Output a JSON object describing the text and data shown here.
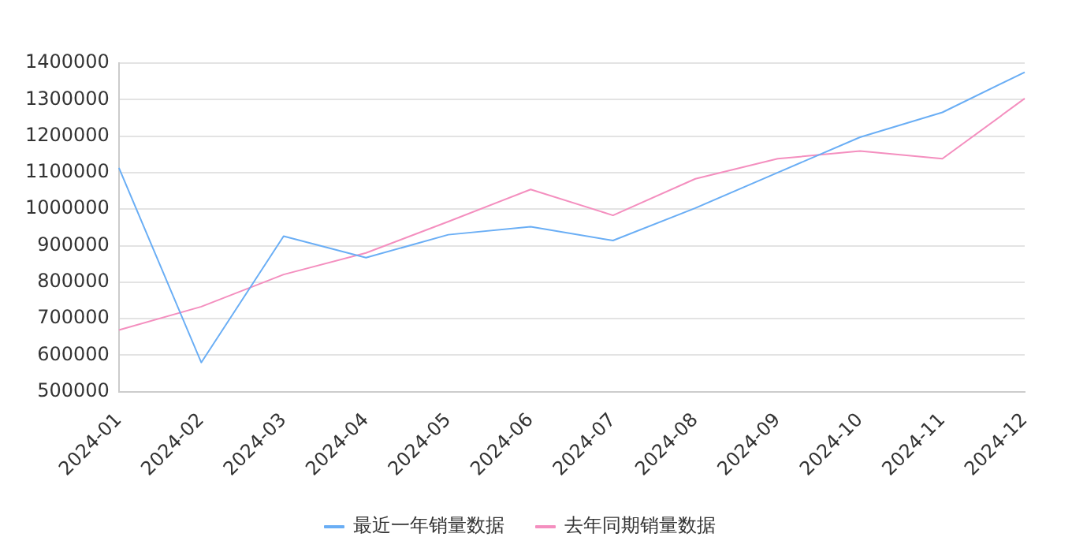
{
  "chart_data": {
    "type": "line",
    "categories": [
      "2024-01",
      "2024-02",
      "2024-03",
      "2024-04",
      "2024-05",
      "2024-06",
      "2024-07",
      "2024-08",
      "2024-09",
      "2024-10",
      "2024-11",
      "2024-12"
    ],
    "series": [
      {
        "name": "最近一年销量数据",
        "color": "#6aaef5",
        "values": [
          1113000,
          580000,
          926000,
          867000,
          930000,
          952000,
          914000,
          1003000,
          1100000,
          1197000,
          1265000,
          1375000
        ]
      },
      {
        "name": "去年同期销量数据",
        "color": "#f48fbf",
        "values": [
          669000,
          733000,
          821000,
          880000,
          966000,
          1054000,
          983000,
          1083000,
          1138000,
          1159000,
          1138000,
          1303000
        ]
      }
    ],
    "ylim": [
      500000,
      1400000
    ],
    "yticks": [
      500000,
      600000,
      700000,
      800000,
      900000,
      1000000,
      1100000,
      1200000,
      1300000,
      1400000
    ],
    "grid": "y",
    "legend": "bottom",
    "marker": "none",
    "line_style": "solid"
  }
}
